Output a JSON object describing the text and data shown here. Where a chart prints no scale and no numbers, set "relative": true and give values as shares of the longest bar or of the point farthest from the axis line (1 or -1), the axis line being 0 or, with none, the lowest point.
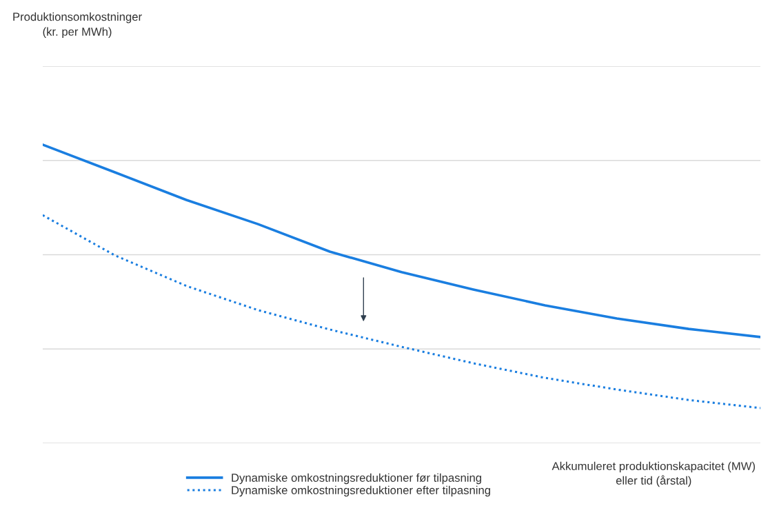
{
  "chart_data": {
    "type": "line",
    "relative": true,
    "xlabel": "Akkumuleret produktionskapacitet (MW)\neller tid (årstal)",
    "annotations": [
      "Produktionsomkostninger\n(kr. per MWh)"
    ],
    "categories": [
      null,
      null,
      null,
      null,
      null,
      null,
      null,
      null,
      null,
      null,
      null
    ],
    "series": [
      {
        "name": "Dynamiske omkostningsreduktioner før tilpasning",
        "color": "#1a7ee0",
        "line_style": "solid",
        "values": [
          1,
          0.908,
          0.815,
          0.734,
          0.642,
          0.573,
          0.515,
          0.462,
          0.418,
          0.383,
          0.356
        ]
      },
      {
        "name": "Dynamiske omkostningsreduktioner efter tilpasning",
        "color": "#1a7ee0",
        "line_style": "dotted",
        "values": [
          0.764,
          0.63,
          0.527,
          0.446,
          0.381,
          0.323,
          0.268,
          0.219,
          0.18,
          0.145,
          0.118
        ]
      }
    ],
    "grid": "y",
    "legend": "bottom",
    "marker": "none"
  }
}
